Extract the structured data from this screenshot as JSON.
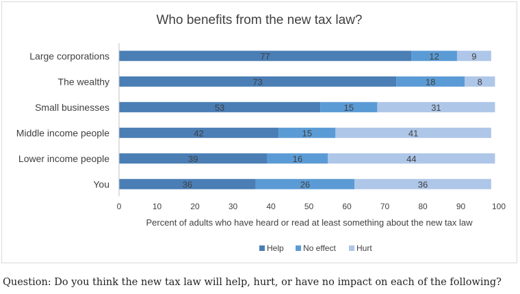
{
  "chart_data": {
    "type": "bar",
    "orientation": "horizontal",
    "stacked": true,
    "title": "Who benefits from the new tax law?",
    "xlabel": "Percent of adults who have heard or read at least something about the new tax law",
    "ylabel": "",
    "xlim": [
      0,
      100
    ],
    "xticks": [
      0,
      10,
      20,
      30,
      40,
      50,
      60,
      70,
      80,
      90,
      100
    ],
    "categories": [
      "Large corporations",
      "The wealthy",
      "Small businesses",
      "Middle income people",
      "Lower income people",
      "You"
    ],
    "series": [
      {
        "name": "Help",
        "color": "#4a7eb5",
        "values": [
          77,
          73,
          53,
          42,
          39,
          36
        ]
      },
      {
        "name": "No effect",
        "color": "#5b9bd5",
        "values": [
          12,
          18,
          15,
          15,
          16,
          26
        ]
      },
      {
        "name": "Hurt",
        "color": "#aec6e8",
        "values": [
          9,
          8,
          31,
          41,
          44,
          36
        ]
      }
    ],
    "grid": false,
    "legend_position": "bottom"
  },
  "question": "Question: Do you think the new tax law will help, hurt, or have no impact on each of the following?"
}
